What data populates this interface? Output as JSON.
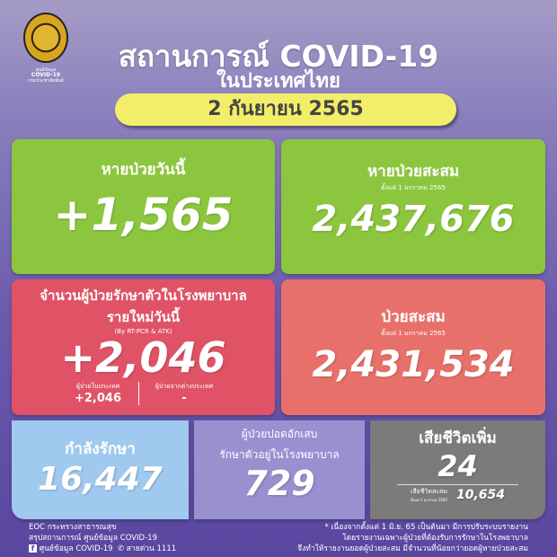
{
  "header": {
    "logo_text": [
      "ศูนย์ข้อมูล",
      "COVID-19",
      "กรมประชาสัมพันธ์"
    ],
    "title": "สถานการณ์ COVID-19",
    "subtitle": "ในประเทศไทย",
    "date": "2 กันยายน 2565"
  },
  "cards": {
    "recovered_today": {
      "label": "หายป่วยวันนี้",
      "value": "+1,565",
      "color": "#8cc63e"
    },
    "recovered_total": {
      "label": "หายป่วยสะสม",
      "note": "ตั้งแต่ 1 มกราคม 2565",
      "value": "2,437,676",
      "color": "#8cc63e"
    },
    "new_cases": {
      "label1": "จำนวนผู้ป่วยรักษาตัวในโรงพยาบาล",
      "label2": "รายใหม่วันนี้",
      "method": "(By RT-PCR & ATK)",
      "value": "+2,046",
      "domestic_label": "ผู้ป่วยในประเทศ",
      "domestic_value": "+2,046",
      "imported_label": "ผู้ป่วยจากต่างประเทศ",
      "imported_value": "-",
      "color": "#e05366"
    },
    "total_cases": {
      "label": "ป่วยสะสม",
      "note": "ตั้งแต่ 1 มกราคม 2565",
      "value": "2,431,534",
      "color": "#e8706a"
    },
    "in_treatment": {
      "label": "กำลังรักษา",
      "value": "16,447",
      "color": "#9fc9ee"
    },
    "pneumonia": {
      "label1": "ผู้ป่วยปอดอักเสบ",
      "label2": "รักษาตัวอยู่ในโรงพยาบาล",
      "value": "729",
      "color": "#9990d0"
    },
    "deaths": {
      "label": "เสียชีวิตเพิ่ม",
      "value": "24",
      "total_label": "เสียชีวิตสะสม",
      "total_note": "ตั้งแต่ 1 มกราคม 2565",
      "total_value": "10,654",
      "color": "#7b7b7b"
    }
  },
  "footer": {
    "source1": "EOC กระทรวงสาธารณสุข",
    "source2": "สรุปสถานการณ์ ศูนย์ข้อมูล COVID-19",
    "facebook": "ศูนย์ข้อมูล COVID-19",
    "hotline": "สายด่วน 1111",
    "note": [
      "* เนื่องจากตั้งแต่ 1 มิ.ย. 65 เป็นต้นมา มีการปรับระบบรายงาน",
      "โดยรายงานเฉพาะผู้ป่วยที่ต้องรับการรักษาในโรงพยาบาล",
      "จึงทำให้รายงานยอดผู้ป่วยสะสม มีจำนวนที่น้อยกว่ายอดผู้หายป่วยสะสม"
    ]
  }
}
